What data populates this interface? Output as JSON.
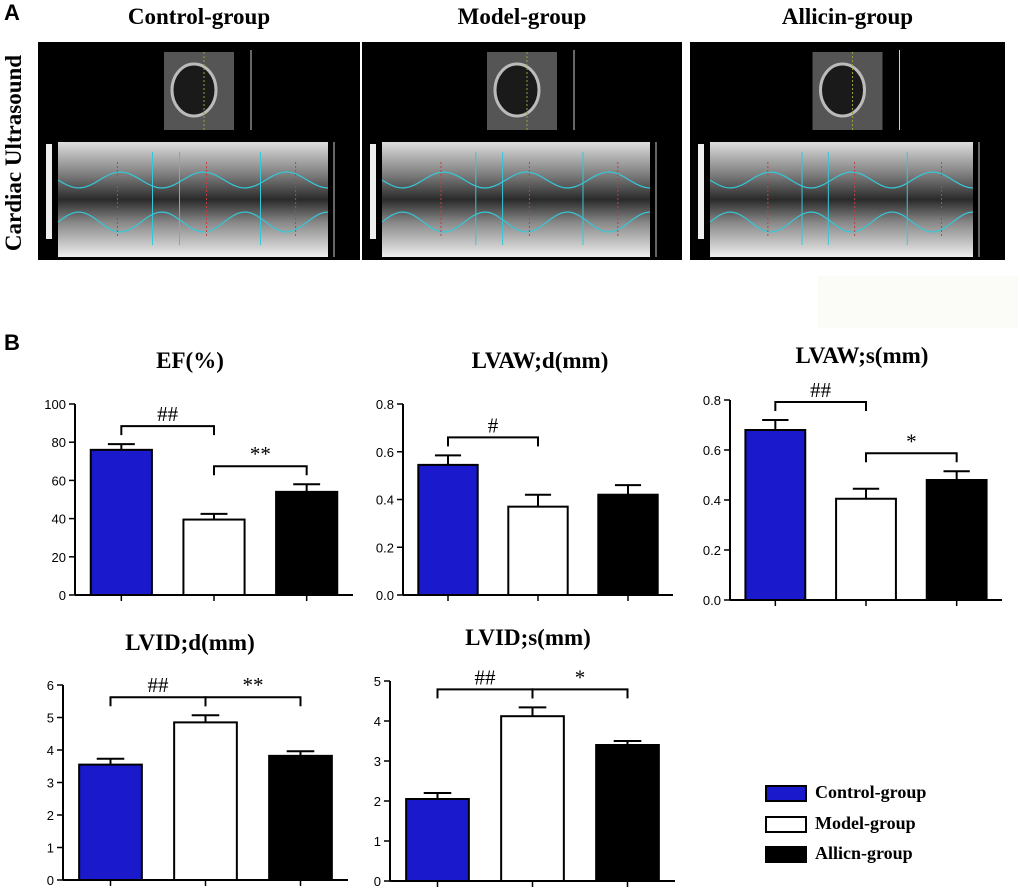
{
  "panel_a": {
    "letter": "A",
    "row_label": "Cardiac Ultrasound",
    "groups": [
      {
        "title": "Control-group"
      },
      {
        "title": "Model-group"
      },
      {
        "title": "Allicin-group"
      }
    ]
  },
  "panel_b": {
    "letter": "B"
  },
  "colors": {
    "control": "#1a1acc",
    "model": "#ffffff",
    "allicin": "#000000"
  },
  "legend": [
    {
      "label": "Control-group",
      "color": "#1a1acc"
    },
    {
      "label": "Model-group",
      "color": "#ffffff"
    },
    {
      "label": "Allicn-group",
      "color": "#000000"
    }
  ],
  "chart_data": [
    {
      "type": "bar",
      "title": "EF(%)",
      "categories": [
        "Control-group",
        "Model-group",
        "Allicin-group"
      ],
      "values": [
        76,
        39.5,
        54
      ],
      "errors": [
        3,
        3,
        4
      ],
      "ylim": [
        0,
        100
      ],
      "yticks": [
        "0",
        "20",
        "40",
        "60",
        "80",
        "100"
      ],
      "significance": [
        {
          "from": 0,
          "to": 1,
          "label": "##"
        },
        {
          "from": 1,
          "to": 2,
          "label": "**"
        }
      ]
    },
    {
      "type": "bar",
      "title": "LVAW;d(mm)",
      "categories": [
        "Control-group",
        "Model-group",
        "Allicin-group"
      ],
      "values": [
        0.545,
        0.37,
        0.42
      ],
      "errors": [
        0.04,
        0.05,
        0.04
      ],
      "ylim": [
        0,
        0.8
      ],
      "yticks": [
        "0.0",
        "0.2",
        "0.4",
        "0.6",
        "0.8"
      ],
      "significance": [
        {
          "from": 0,
          "to": 1,
          "label": "#"
        }
      ]
    },
    {
      "type": "bar",
      "title": "LVAW;s(mm)",
      "categories": [
        "Control-group",
        "Model-group",
        "Allicin-group"
      ],
      "values": [
        0.68,
        0.405,
        0.48
      ],
      "errors": [
        0.04,
        0.04,
        0.035
      ],
      "ylim": [
        0,
        0.8
      ],
      "yticks": [
        "0.0",
        "0.2",
        "0.4",
        "0.6",
        "0.8"
      ],
      "significance": [
        {
          "from": 0,
          "to": 1,
          "label": "##"
        },
        {
          "from": 1,
          "to": 2,
          "label": "*"
        }
      ]
    },
    {
      "type": "bar",
      "title": "LVID;d(mm)",
      "categories": [
        "Control-group",
        "Model-group",
        "Allicin-group"
      ],
      "values": [
        3.55,
        4.85,
        3.82
      ],
      "errors": [
        0.18,
        0.22,
        0.14
      ],
      "ylim": [
        0,
        6
      ],
      "yticks": [
        "0",
        "1",
        "2",
        "3",
        "4",
        "5",
        "6"
      ],
      "significance": [
        {
          "from": 0,
          "to": 1,
          "label": "##"
        },
        {
          "from": 1,
          "to": 2,
          "label": "**"
        }
      ]
    },
    {
      "type": "bar",
      "title": "LVID;s(mm)",
      "categories": [
        "Control-group",
        "Model-group",
        "Allicin-group"
      ],
      "values": [
        2.05,
        4.12,
        3.4
      ],
      "errors": [
        0.15,
        0.22,
        0.1
      ],
      "ylim": [
        0,
        5
      ],
      "yticks": [
        "0",
        "1",
        "2",
        "3",
        "4",
        "5"
      ],
      "significance": [
        {
          "from": 0,
          "to": 1,
          "label": "##"
        },
        {
          "from": 1,
          "to": 2,
          "label": "*"
        }
      ]
    }
  ]
}
